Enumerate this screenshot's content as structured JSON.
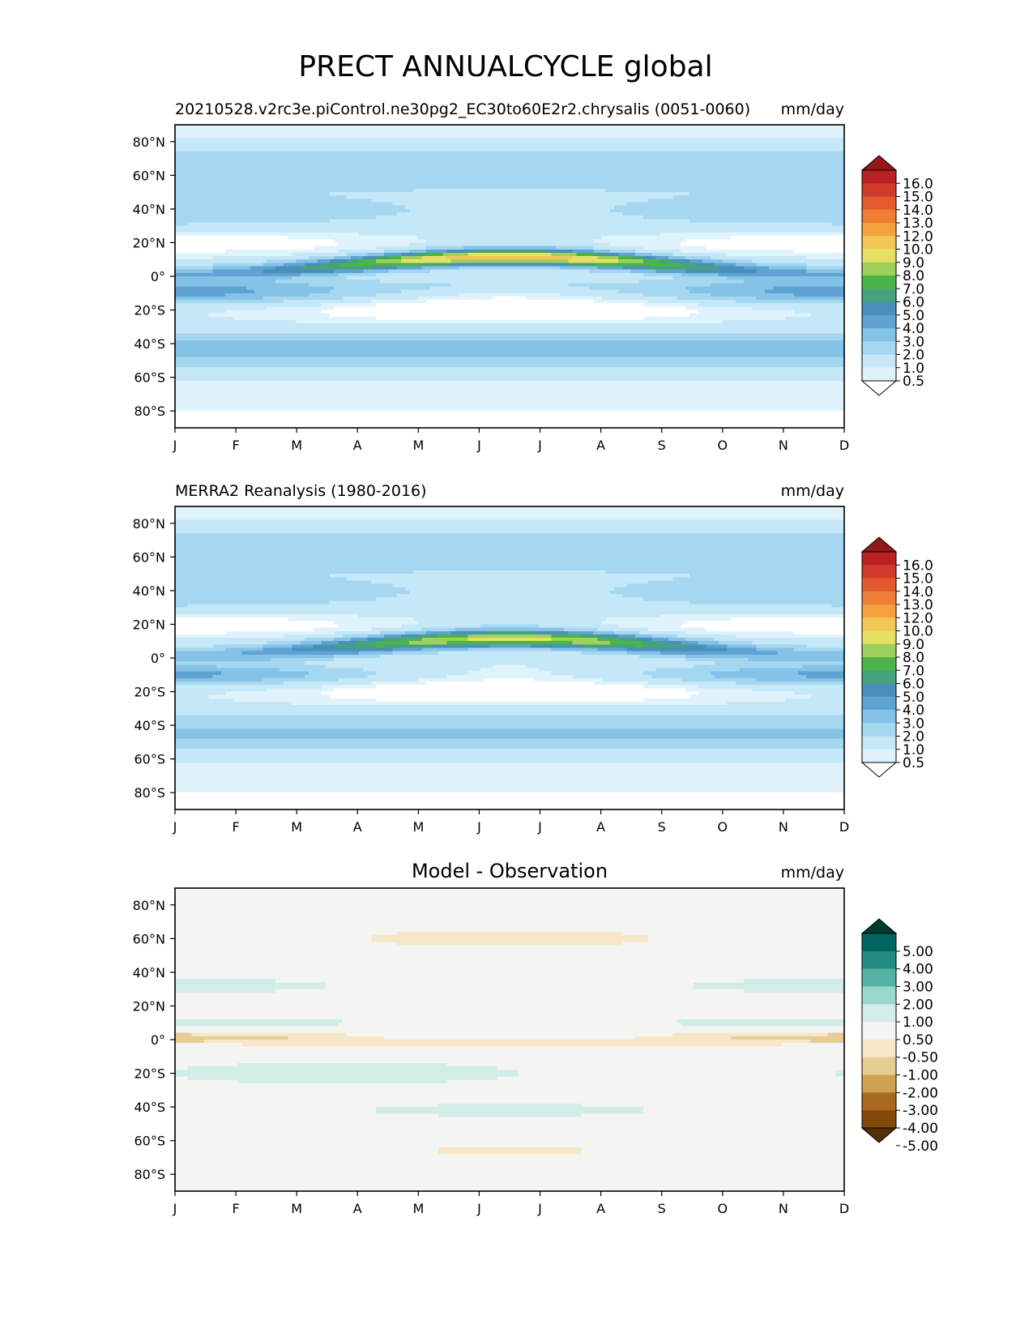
{
  "figure_title": "PRECT ANNUALCYCLE global",
  "chart_data": [
    {
      "type": "heatmap",
      "panel": "test",
      "title_left": "20210528.v2rc3e.piControl.ne30pg2_EC30to60E2r2.chrysalis (0051-0060)",
      "title_center": "",
      "units": "mm/day",
      "x_ticklabels": [
        "J",
        "F",
        "M",
        "A",
        "M",
        "J",
        "J",
        "A",
        "S",
        "O",
        "N",
        "D"
      ],
      "y_ticklabels": [
        "80°N",
        "60°N",
        "40°N",
        "20°N",
        "0°",
        "20°S",
        "40°S",
        "60°S",
        "80°S"
      ],
      "ylim": [
        -90,
        90
      ],
      "colorbar": {
        "levels": [
          "0.5",
          "1.0",
          "2.0",
          "3.0",
          "4.0",
          "5.0",
          "6.0",
          "7.0",
          "8.0",
          "9.0",
          "10.0",
          "12.0",
          "13.0",
          "14.0",
          "15.0",
          "16.0"
        ],
        "colors": [
          "#ffffff",
          "#e0f3fc",
          "#c4e8f7",
          "#a5d7f1",
          "#84c2e7",
          "#5fa2d4",
          "#4a8fba",
          "#44a37a",
          "#4bb449",
          "#9fd05c",
          "#e6e165",
          "#f3c656",
          "#f4a03f",
          "#ee7e34",
          "#e25a2d",
          "#d03a2a",
          "#ba2125",
          "#941719"
        ],
        "extend": "both"
      },
      "field_summary": {
        "itcz_max_mm_day": 13.0,
        "itcz_latitude_range": [
          3,
          12
        ],
        "itcz_peak_month": "A",
        "sh_storm_track_mm_day": 4.0,
        "sh_storm_track_latitude": -40
      }
    },
    {
      "type": "heatmap",
      "panel": "reference",
      "title_left": "MERRA2 Reanalysis (1980-2016)",
      "title_center": "",
      "units": "mm/day",
      "x_ticklabels": [
        "J",
        "F",
        "M",
        "A",
        "M",
        "J",
        "J",
        "A",
        "S",
        "O",
        "N",
        "D"
      ],
      "y_ticklabels": [
        "80°N",
        "60°N",
        "40°N",
        "20°N",
        "0°",
        "20°S",
        "40°S",
        "60°S",
        "80°S"
      ],
      "ylim": [
        -90,
        90
      ],
      "colorbar": {
        "levels": [
          "0.5",
          "1.0",
          "2.0",
          "3.0",
          "4.0",
          "5.0",
          "6.0",
          "7.0",
          "8.0",
          "9.0",
          "10.0",
          "12.0",
          "13.0",
          "14.0",
          "15.0",
          "16.0"
        ],
        "colors": [
          "#ffffff",
          "#e0f3fc",
          "#c4e8f7",
          "#a5d7f1",
          "#84c2e7",
          "#5fa2d4",
          "#4a8fba",
          "#44a37a",
          "#4bb449",
          "#9fd05c",
          "#e6e165",
          "#f3c656",
          "#f4a03f",
          "#ee7e34",
          "#e25a2d",
          "#d03a2a",
          "#ba2125",
          "#941719"
        ],
        "extend": "both"
      },
      "field_summary": {
        "itcz_max_mm_day": 11.0,
        "itcz_latitude_range": [
          3,
          12
        ],
        "itcz_peak_month": "A",
        "sh_storm_track_mm_day": 4.0,
        "sh_storm_track_latitude": -45
      }
    },
    {
      "type": "heatmap",
      "panel": "difference",
      "title_left": "",
      "title_center": "Model - Observation",
      "units": "mm/day",
      "x_ticklabels": [
        "J",
        "F",
        "M",
        "A",
        "M",
        "J",
        "J",
        "A",
        "S",
        "O",
        "N",
        "D"
      ],
      "y_ticklabels": [
        "80°N",
        "60°N",
        "40°N",
        "20°N",
        "0°",
        "20°S",
        "40°S",
        "60°S",
        "80°S"
      ],
      "ylim": [
        -90,
        90
      ],
      "colorbar": {
        "levels": [
          "5.00",
          "4.00",
          "3.00",
          "2.00",
          "1.00",
          "0.50",
          "-0.50",
          "-1.00",
          "-2.00",
          "-3.00",
          "-4.00",
          "-5.00"
        ],
        "colors": [
          "#003c30",
          "#01665e",
          "#238b83",
          "#55b3a6",
          "#9bd8cc",
          "#d2ece7",
          "#f4f4f2",
          "#f5e7c8",
          "#e8cd92",
          "#cfa150",
          "#a8691c",
          "#82490b",
          "#543005"
        ],
        "extend": "both"
      },
      "field_summary": {
        "max_positive_mm_day": 2.0,
        "max_negative_mm_day": -2.0
      }
    }
  ]
}
